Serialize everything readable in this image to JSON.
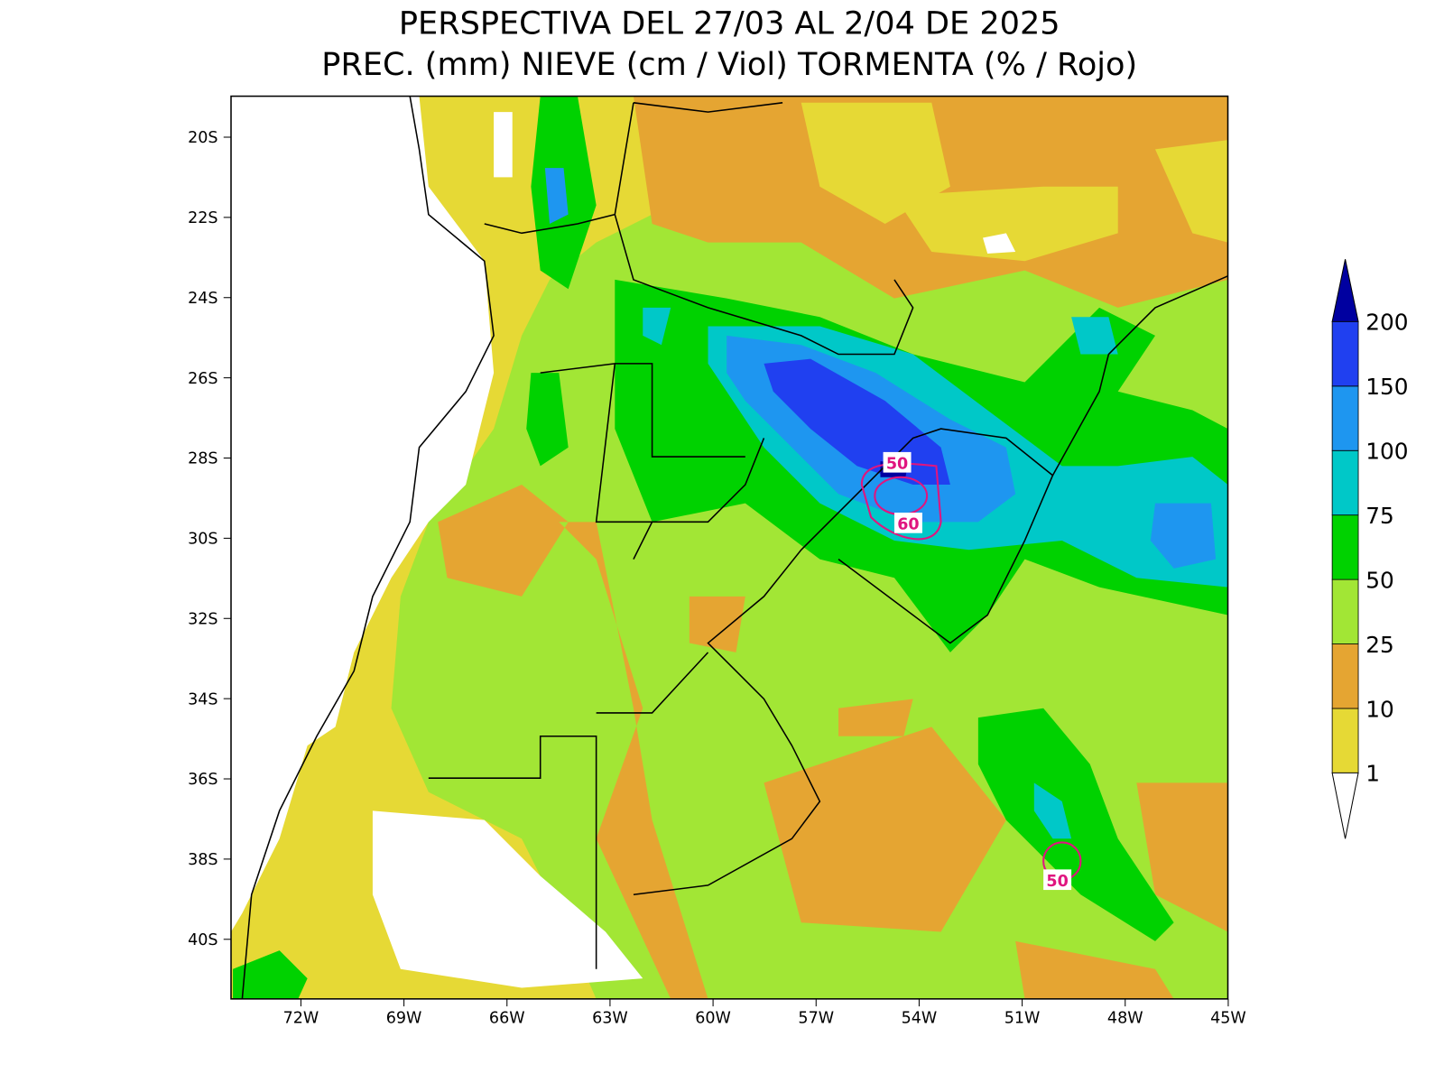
{
  "title": [
    "PERSPECTIVA DEL 27/03 AL 2/04 DE 2025",
    "PREC. (mm) NIEVE (cm / Viol) TORMENTA (% / Rojo)"
  ],
  "lat_labels": [
    "20S",
    "22S",
    "24S",
    "26S",
    "28S",
    "30S",
    "32S",
    "34S",
    "36S",
    "38S",
    "40S"
  ],
  "lon_labels": [
    "72W",
    "69W",
    "66W",
    "63W",
    "60W",
    "57W",
    "54W",
    "51W",
    "48W",
    "45W"
  ],
  "colorbar": {
    "levels": [
      1,
      10,
      25,
      50,
      75,
      100,
      150,
      200
    ],
    "colors": [
      "#ffffff",
      "#e6d935",
      "#e5a532",
      "#a2e635",
      "#00d200",
      "#00c8c8",
      "#1e96f0",
      "#2040f0",
      "#0000a0"
    ]
  },
  "contour_labels": [
    "50",
    "60",
    "50"
  ]
}
